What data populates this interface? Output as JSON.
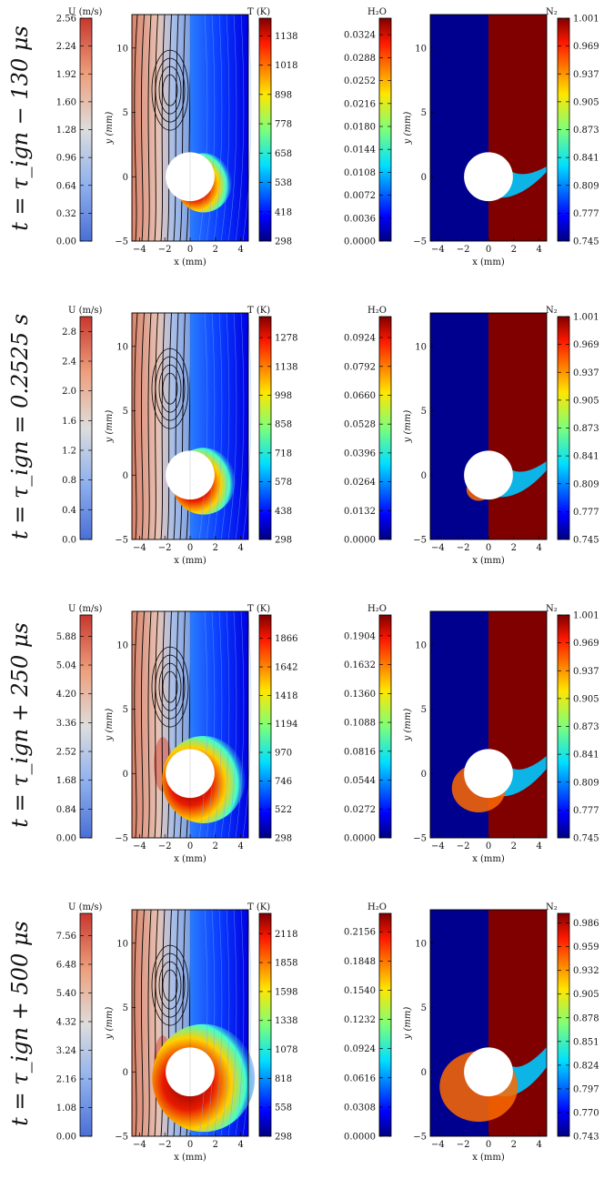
{
  "x_axis_label": "x (mm)",
  "y_axis_label": "y (mm)",
  "x_ticks": [
    "−4",
    "−2",
    "0",
    "2",
    "4"
  ],
  "y_ticks": [
    "−5",
    "0",
    "5",
    "10"
  ],
  "chart_data": {
    "type": "contour",
    "x_range_mm": [
      -4.6,
      4.6
    ],
    "y_range_mm": [
      -5,
      12.6
    ],
    "rows": [
      {
        "label": "t = τ_ign − 130 μs",
        "velocity": {
          "title": "U (m/s)",
          "ticks": [
            "0.00",
            "0.32",
            "0.64",
            "0.96",
            "1.28",
            "1.60",
            "1.92",
            "2.24",
            "2.56"
          ],
          "min": 0.0,
          "max": 2.56
        },
        "temperature": {
          "title": "T (K)",
          "ticks": [
            "298",
            "418",
            "538",
            "658",
            "778",
            "898",
            "1018",
            "1138"
          ],
          "min": 298,
          "max": 1210
        },
        "h2o": {
          "title": "H₂O",
          "ticks": [
            "0.0000",
            "0.0036",
            "0.0072",
            "0.0108",
            "0.0144",
            "0.0180",
            "0.0216",
            "0.0252",
            "0.0288",
            "0.0324"
          ],
          "min": 0.0,
          "max": 0.035
        },
        "n2": {
          "title": "N₂",
          "ticks": [
            "0.745",
            "0.777",
            "0.809",
            "0.841",
            "0.873",
            "0.905",
            "0.937",
            "0.969",
            "1.001"
          ],
          "min": 0.745,
          "max": 1.001
        }
      },
      {
        "label": "t = τ_ign = 0.2525 s",
        "velocity": {
          "title": "U (m/s)",
          "ticks": [
            "0.0",
            "0.4",
            "0.8",
            "1.2",
            "1.6",
            "2.0",
            "2.4",
            "2.8"
          ],
          "min": 0.0,
          "max": 3.0
        },
        "temperature": {
          "title": "T (K)",
          "ticks": [
            "298",
            "438",
            "578",
            "718",
            "858",
            "998",
            "1138",
            "1278"
          ],
          "min": 298,
          "max": 1380
        },
        "h2o": {
          "title": "H₂O",
          "ticks": [
            "0.0000",
            "0.0132",
            "0.0264",
            "0.0396",
            "0.0528",
            "0.0660",
            "0.0792",
            "0.0924"
          ],
          "min": 0.0,
          "max": 0.102
        },
        "n2": {
          "title": "N₂",
          "ticks": [
            "0.745",
            "0.777",
            "0.809",
            "0.841",
            "0.873",
            "0.905",
            "0.937",
            "0.969",
            "1.001"
          ],
          "min": 0.745,
          "max": 1.001
        }
      },
      {
        "label": "t = τ_ign + 250 μs",
        "velocity": {
          "title": "U (m/s)",
          "ticks": [
            "0.00",
            "0.84",
            "1.68",
            "2.52",
            "3.36",
            "4.20",
            "5.04",
            "5.88"
          ],
          "min": 0.0,
          "max": 6.5
        },
        "temperature": {
          "title": "T (K)",
          "ticks": [
            "298",
            "522",
            "746",
            "970",
            "1194",
            "1418",
            "1642",
            "1866"
          ],
          "min": 298,
          "max": 2050
        },
        "h2o": {
          "title": "H₂O",
          "ticks": [
            "0.0000",
            "0.0272",
            "0.0544",
            "0.0816",
            "0.1088",
            "0.1360",
            "0.1632",
            "0.1904"
          ],
          "min": 0.0,
          "max": 0.21
        },
        "n2": {
          "title": "N₂",
          "ticks": [
            "0.745",
            "0.777",
            "0.809",
            "0.841",
            "0.873",
            "0.905",
            "0.937",
            "0.969",
            "1.001"
          ],
          "min": 0.745,
          "max": 1.001
        }
      },
      {
        "label": "t = τ_ign + 500 μs",
        "velocity": {
          "title": "U (m/s)",
          "ticks": [
            "0.00",
            "1.08",
            "2.16",
            "3.24",
            "4.32",
            "5.40",
            "6.48",
            "7.56"
          ],
          "min": 0.0,
          "max": 8.4
        },
        "temperature": {
          "title": "T (K)",
          "ticks": [
            "298",
            "558",
            "818",
            "1078",
            "1338",
            "1598",
            "1858",
            "2118"
          ],
          "min": 298,
          "max": 2300
        },
        "h2o": {
          "title": "H₂O",
          "ticks": [
            "0.0000",
            "0.0308",
            "0.0616",
            "0.0924",
            "0.1232",
            "0.1540",
            "0.1848",
            "0.2156"
          ],
          "min": 0.0,
          "max": 0.235
        },
        "n2": {
          "title": "N₂",
          "ticks": [
            "0.743",
            "0.770",
            "0.797",
            "0.824",
            "0.851",
            "0.878",
            "0.905",
            "0.932",
            "0.959",
            "0.986"
          ],
          "min": 0.743,
          "max": 0.997
        }
      }
    ]
  }
}
